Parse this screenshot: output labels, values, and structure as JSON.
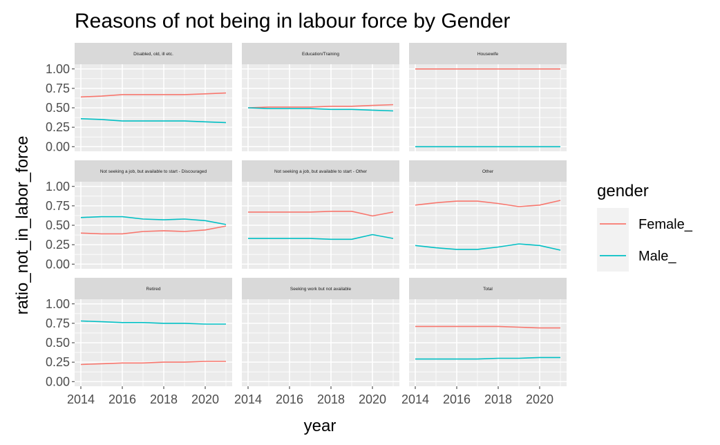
{
  "chart_data": {
    "type": "line",
    "title": "Reasons of not being in labour force by Gender",
    "xlabel": "year",
    "ylabel": "ratio_not_in_labor_force",
    "xlim": [
      2013.7,
      2021.3
    ],
    "ylim": [
      -0.06,
      1.06
    ],
    "x_ticks": [
      2014,
      2016,
      2018,
      2020
    ],
    "x_tick_labels": [
      "2014",
      "2016",
      "2018",
      "2020"
    ],
    "y_ticks": [
      0,
      0.25,
      0.5,
      0.75,
      1.0
    ],
    "y_tick_labels": [
      "0.00",
      "0.25",
      "0.50",
      "0.75",
      "1.00"
    ],
    "grid": true,
    "legend": {
      "title": "gender",
      "position": "right",
      "entries": [
        {
          "label": "Female_",
          "color": "#f8766d"
        },
        {
          "label": "Male_",
          "color": "#00bfc4"
        }
      ]
    },
    "facets": [
      {
        "label": "Disabled, old, ill etc.",
        "series": [
          {
            "name": "Female_",
            "x": [
              2014,
              2015,
              2016,
              2017,
              2018,
              2019,
              2020,
              2021
            ],
            "values": [
              0.64,
              0.65,
              0.67,
              0.67,
              0.67,
              0.67,
              0.68,
              0.69
            ]
          },
          {
            "name": "Male_",
            "x": [
              2014,
              2015,
              2016,
              2017,
              2018,
              2019,
              2020,
              2021
            ],
            "values": [
              0.36,
              0.35,
              0.33,
              0.33,
              0.33,
              0.33,
              0.32,
              0.31
            ]
          }
        ]
      },
      {
        "label": "Education/Training",
        "series": [
          {
            "name": "Female_",
            "x": [
              2014,
              2015,
              2016,
              2017,
              2018,
              2019,
              2020,
              2021
            ],
            "values": [
              0.5,
              0.51,
              0.51,
              0.51,
              0.52,
              0.52,
              0.53,
              0.54
            ]
          },
          {
            "name": "Male_",
            "x": [
              2014,
              2015,
              2016,
              2017,
              2018,
              2019,
              2020,
              2021
            ],
            "values": [
              0.5,
              0.49,
              0.49,
              0.49,
              0.48,
              0.48,
              0.47,
              0.46
            ]
          }
        ]
      },
      {
        "label": "Housewife",
        "series": [
          {
            "name": "Female_",
            "x": [
              2014,
              2015,
              2016,
              2017,
              2018,
              2019,
              2020,
              2021
            ],
            "values": [
              1.0,
              1.0,
              1.0,
              1.0,
              1.0,
              1.0,
              1.0,
              1.0
            ]
          },
          {
            "name": "Male_",
            "x": [
              2014,
              2015,
              2016,
              2017,
              2018,
              2019,
              2020,
              2021
            ],
            "values": [
              0.0,
              0.0,
              0.0,
              0.0,
              0.0,
              0.0,
              0.0,
              0.0
            ]
          }
        ]
      },
      {
        "label": "Not seeking a job, but available to start - Discouraged",
        "series": [
          {
            "name": "Female_",
            "x": [
              2014,
              2015,
              2016,
              2017,
              2018,
              2019,
              2020,
              2021
            ],
            "values": [
              0.4,
              0.39,
              0.39,
              0.42,
              0.43,
              0.42,
              0.44,
              0.49
            ]
          },
          {
            "name": "Male_",
            "x": [
              2014,
              2015,
              2016,
              2017,
              2018,
              2019,
              2020,
              2021
            ],
            "values": [
              0.6,
              0.61,
              0.61,
              0.58,
              0.57,
              0.58,
              0.56,
              0.51
            ]
          }
        ]
      },
      {
        "label": "Not seeking a job, but available to start - Other",
        "series": [
          {
            "name": "Female_",
            "x": [
              2014,
              2015,
              2016,
              2017,
              2018,
              2019,
              2020,
              2021
            ],
            "values": [
              0.67,
              0.67,
              0.67,
              0.67,
              0.68,
              0.68,
              0.62,
              0.67
            ]
          },
          {
            "name": "Male_",
            "x": [
              2014,
              2015,
              2016,
              2017,
              2018,
              2019,
              2020,
              2021
            ],
            "values": [
              0.33,
              0.33,
              0.33,
              0.33,
              0.32,
              0.32,
              0.38,
              0.33
            ]
          }
        ]
      },
      {
        "label": "Other",
        "series": [
          {
            "name": "Female_",
            "x": [
              2014,
              2015,
              2016,
              2017,
              2018,
              2019,
              2020,
              2021
            ],
            "values": [
              0.76,
              0.79,
              0.81,
              0.81,
              0.78,
              0.74,
              0.76,
              0.82
            ]
          },
          {
            "name": "Male_",
            "x": [
              2014,
              2015,
              2016,
              2017,
              2018,
              2019,
              2020,
              2021
            ],
            "values": [
              0.24,
              0.21,
              0.19,
              0.19,
              0.22,
              0.26,
              0.24,
              0.18
            ]
          }
        ]
      },
      {
        "label": "Retired",
        "series": [
          {
            "name": "Female_",
            "x": [
              2014,
              2015,
              2016,
              2017,
              2018,
              2019,
              2020,
              2021
            ],
            "values": [
              0.22,
              0.23,
              0.24,
              0.24,
              0.25,
              0.25,
              0.26,
              0.26
            ]
          },
          {
            "name": "Male_",
            "x": [
              2014,
              2015,
              2016,
              2017,
              2018,
              2019,
              2020,
              2021
            ],
            "values": [
              0.78,
              0.77,
              0.76,
              0.76,
              0.75,
              0.75,
              0.74,
              0.74
            ]
          }
        ]
      },
      {
        "label": "Seeking work but not available",
        "series": []
      },
      {
        "label": "Total",
        "series": [
          {
            "name": "Female_",
            "x": [
              2014,
              2015,
              2016,
              2017,
              2018,
              2019,
              2020,
              2021
            ],
            "values": [
              0.71,
              0.71,
              0.71,
              0.71,
              0.71,
              0.7,
              0.69,
              0.69
            ]
          },
          {
            "name": "Male_",
            "x": [
              2014,
              2015,
              2016,
              2017,
              2018,
              2019,
              2020,
              2021
            ],
            "values": [
              0.29,
              0.29,
              0.29,
              0.29,
              0.3,
              0.3,
              0.31,
              0.31
            ]
          }
        ]
      }
    ]
  }
}
